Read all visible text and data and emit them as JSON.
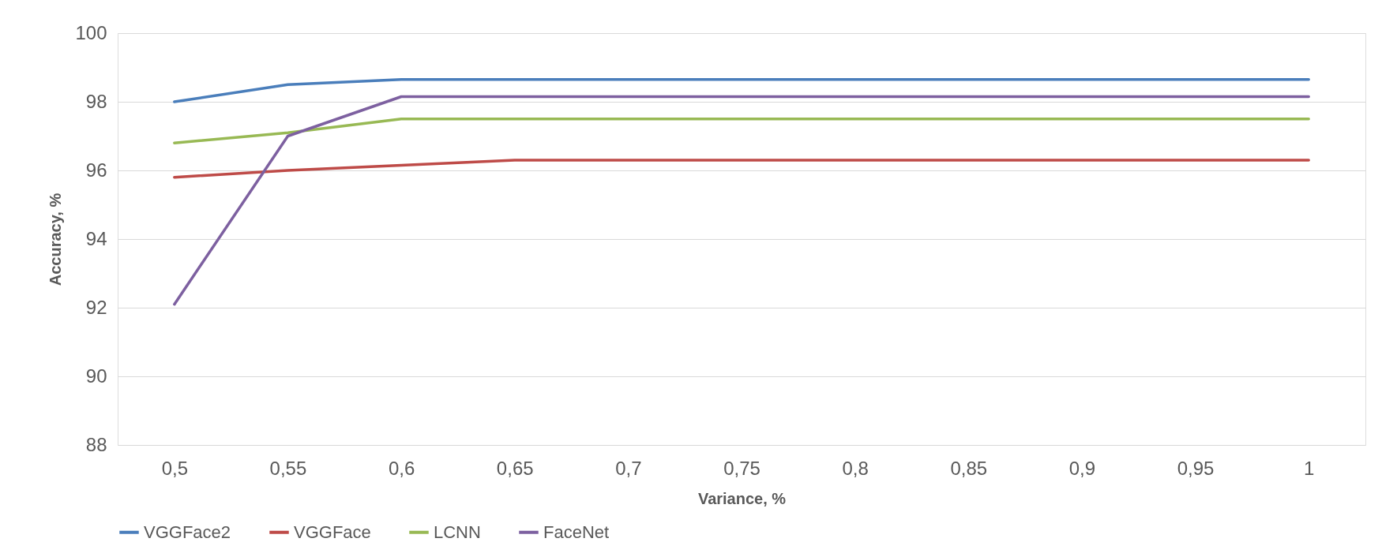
{
  "chart_data": {
    "type": "line",
    "xlabel": "Variance, %",
    "ylabel": "Accuracy, %",
    "categories": [
      "0,5",
      "0,55",
      "0,6",
      "0,65",
      "0,7",
      "0,75",
      "0,8",
      "0,85",
      "0,9",
      "0,95",
      "1"
    ],
    "series": [
      {
        "name": "VGGFace2",
        "color": "#4a7ebb",
        "values": [
          98.0,
          98.5,
          98.65,
          98.65,
          98.65,
          98.65,
          98.65,
          98.65,
          98.65,
          98.65,
          98.65
        ]
      },
      {
        "name": "VGGFace",
        "color": "#be4b48",
        "values": [
          95.8,
          96.0,
          96.15,
          96.3,
          96.3,
          96.3,
          96.3,
          96.3,
          96.3,
          96.3,
          96.3
        ]
      },
      {
        "name": "LCNN",
        "color": "#98b954",
        "values": [
          96.8,
          97.1,
          97.5,
          97.5,
          97.5,
          97.5,
          97.5,
          97.5,
          97.5,
          97.5,
          97.5
        ]
      },
      {
        "name": "FaceNet",
        "color": "#7d60a0",
        "values": [
          92.1,
          97.0,
          98.15,
          98.15,
          98.15,
          98.15,
          98.15,
          98.15,
          98.15,
          98.15,
          98.15
        ]
      }
    ],
    "ylim": [
      88,
      100
    ],
    "yticks": [
      88,
      90,
      92,
      94,
      96,
      98,
      100
    ],
    "grid": "y",
    "legend": "bottom",
    "marker": "none",
    "line_style": "solid"
  }
}
